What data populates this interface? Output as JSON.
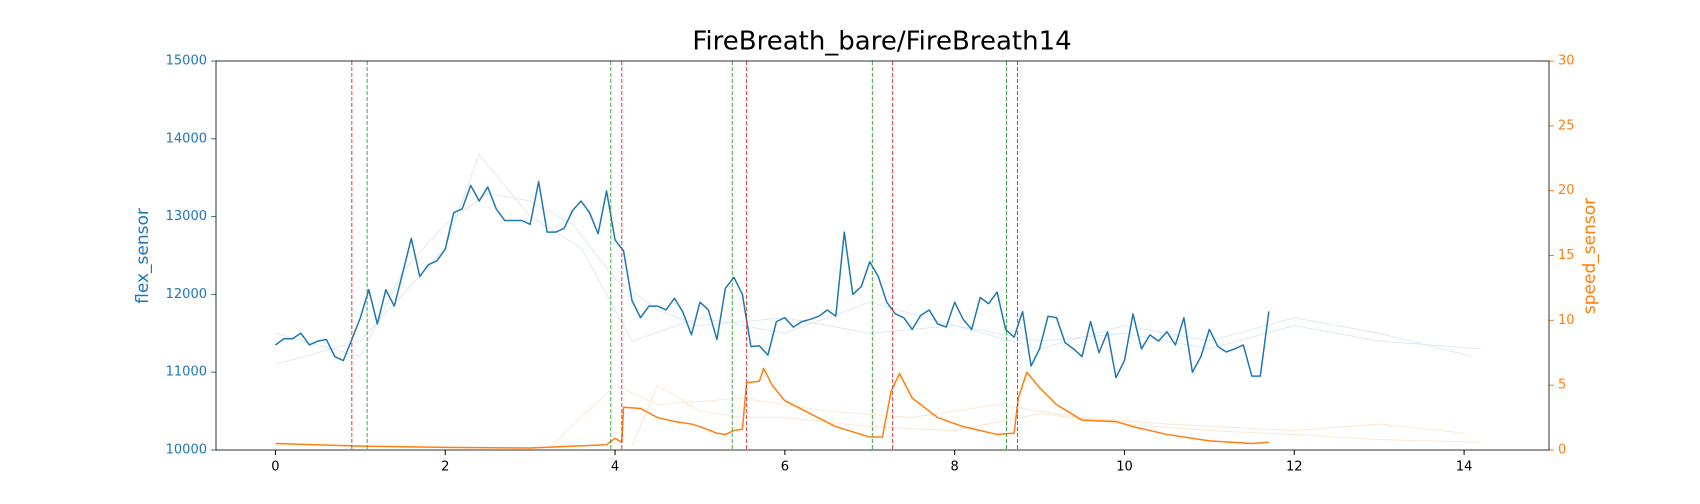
{
  "chart_data": {
    "type": "line",
    "title": "FireBreath_bare/FireBreath14",
    "ylabel": "flex_sensor",
    "y2label": "speed_sensor",
    "y_color": "#1f77b4",
    "y2_color": "#ff7f0e",
    "xlim": [
      -0.7,
      15.0
    ],
    "xticks": [
      0,
      2,
      4,
      6,
      8,
      10,
      12,
      14
    ],
    "ylim": [
      10000,
      15000
    ],
    "yticks": [
      10000,
      11000,
      12000,
      13000,
      14000,
      15000
    ],
    "y2lim": [
      0,
      30
    ],
    "y2ticks": [
      0,
      5,
      10,
      15,
      20,
      25,
      30
    ],
    "vlines": [
      {
        "x": 0.9,
        "color": "#d62728"
      },
      {
        "x": 1.08,
        "color": "#2ca02c"
      },
      {
        "x": 3.95,
        "color": "#2ca02c"
      },
      {
        "x": 4.08,
        "color": "#d62728"
      },
      {
        "x": 5.38,
        "color": "#2ca02c"
      },
      {
        "x": 5.55,
        "color": "#d62728"
      },
      {
        "x": 7.03,
        "color": "#2ca02c"
      },
      {
        "x": 7.27,
        "color": "#d62728"
      },
      {
        "x": 8.61,
        "color": "#2ca02c"
      },
      {
        "x": 8.74,
        "color": "#d62728"
      }
    ],
    "series": [
      {
        "color": "#d6e4f1",
        "width": 0.8,
        "x": [
          0,
          1,
          1.5,
          2,
          2.5,
          3,
          3.5,
          4,
          4.5,
          5,
          6,
          7,
          8,
          9,
          10,
          11,
          12,
          13,
          14.2
        ],
        "values": [
          11500,
          11200,
          12300,
          12900,
          13300,
          13200,
          12900,
          12200,
          11800,
          11600,
          11700,
          11500,
          11600,
          11400,
          11500,
          11300,
          11600,
          11400,
          11300
        ]
      },
      {
        "color": "#d6e4f1",
        "width": 0.8,
        "x": [
          0,
          1,
          2,
          2.4,
          3,
          3.6,
          4.2,
          5,
          6,
          7,
          8,
          9,
          10,
          11,
          12,
          13,
          14.1
        ],
        "values": [
          11100,
          11400,
          12600,
          13800,
          13000,
          12600,
          11400,
          11700,
          11500,
          11900,
          11600,
          11300,
          11600,
          11400,
          11700,
          11500,
          11200
        ]
      },
      {
        "color": "#fde2cb",
        "width": 0.8,
        "axis": "y2",
        "x": [
          4.2,
          4.5,
          5,
          5.5,
          6,
          7,
          8,
          9,
          10,
          11,
          12,
          13,
          14.2
        ],
        "values": [
          0.3,
          5,
          3,
          2.5,
          2.5,
          1.8,
          1.5,
          2.8,
          2,
          1.5,
          1.2,
          0.8,
          0.6
        ]
      },
      {
        "color": "#fde2cb",
        "width": 0.8,
        "axis": "y2",
        "x": [
          3.2,
          4,
          4.5,
          5.5,
          6.5,
          7.5,
          8.5,
          9.5,
          10.5,
          12,
          13,
          14
        ],
        "values": [
          0,
          5,
          3.5,
          4,
          3,
          2.5,
          3.5,
          2.5,
          2,
          1.5,
          2,
          1.3
        ]
      },
      {
        "color": "#1f77b4",
        "width": 1.5,
        "x": [
          0,
          0.1,
          0.2,
          0.3,
          0.4,
          0.5,
          0.6,
          0.7,
          0.8,
          0.9,
          1,
          1.1,
          1.2,
          1.3,
          1.4,
          1.5,
          1.6,
          1.7,
          1.8,
          1.9,
          2,
          2.1,
          2.2,
          2.3,
          2.4,
          2.5,
          2.6,
          2.7,
          2.8,
          2.9,
          3,
          3.1,
          3.2,
          3.3,
          3.4,
          3.5,
          3.6,
          3.7,
          3.8,
          3.9,
          4,
          4.1,
          4.2,
          4.3,
          4.4,
          4.5,
          4.6,
          4.7,
          4.8,
          4.9,
          5,
          5.1,
          5.2,
          5.3,
          5.4,
          5.5,
          5.6,
          5.7,
          5.8,
          5.9,
          6,
          6.1,
          6.2,
          6.3,
          6.4,
          6.5,
          6.6,
          6.7,
          6.8,
          6.9,
          7,
          7.1,
          7.2,
          7.3,
          7.4,
          7.5,
          7.6,
          7.7,
          7.8,
          7.9,
          8,
          8.1,
          8.2,
          8.3,
          8.4,
          8.5,
          8.6,
          8.7,
          8.8,
          8.9,
          9,
          9.1,
          9.2,
          9.3,
          9.4,
          9.5,
          9.6,
          9.7,
          9.8,
          9.9,
          10,
          10.1,
          10.2,
          10.3,
          10.4,
          10.5,
          10.6,
          10.7,
          10.8,
          10.9,
          11,
          11.1,
          11.2,
          11.3,
          11.4,
          11.5,
          11.6,
          11.7
        ],
        "values": [
          11350,
          11430,
          11430,
          11500,
          11350,
          11400,
          11420,
          11200,
          11150,
          11420,
          11700,
          12060,
          11620,
          12060,
          11850,
          12280,
          12720,
          12230,
          12380,
          12430,
          12580,
          13050,
          13100,
          13400,
          13200,
          13380,
          13100,
          12950,
          12950,
          12950,
          12900,
          13450,
          12800,
          12800,
          12850,
          13080,
          13200,
          13050,
          12780,
          13330,
          12700,
          12560,
          11920,
          11700,
          11850,
          11850,
          11800,
          11950,
          11770,
          11480,
          11900,
          11800,
          11420,
          12080,
          12220,
          12000,
          11330,
          11340,
          11220,
          11650,
          11700,
          11580,
          11650,
          11680,
          11720,
          11800,
          11720,
          12800,
          12000,
          12100,
          12420,
          12230,
          11900,
          11750,
          11700,
          11550,
          11730,
          11800,
          11620,
          11580,
          11900,
          11680,
          11550,
          11960,
          11880,
          12030,
          11550,
          11450,
          11780,
          11080,
          11300,
          11720,
          11700,
          11380,
          11300,
          11200,
          11650,
          11250,
          11520,
          10930,
          11150,
          11750,
          11300,
          11480,
          11400,
          11520,
          11350,
          11700,
          11000,
          11200,
          11550,
          11330,
          11260,
          11300,
          11350,
          10950,
          10950,
          11780
        ]
      },
      {
        "color": "#ff7f0e",
        "width": 1.5,
        "axis": "y2",
        "x": [
          0,
          1,
          2,
          3,
          3.9,
          4,
          4.08,
          4.1,
          4.3,
          4.5,
          4.7,
          4.9,
          5,
          5.2,
          5.3,
          5.4,
          5.5,
          5.55,
          5.7,
          5.75,
          5.85,
          6,
          6.3,
          6.6,
          7,
          7.15,
          7.25,
          7.35,
          7.5,
          7.8,
          8.1,
          8.5,
          8.7,
          8.75,
          8.85,
          9,
          9.2,
          9.5,
          9.9,
          10.1,
          10.5,
          11,
          11.5,
          11.7
        ],
        "values": [
          0.5,
          0.3,
          0.2,
          0.15,
          0.4,
          0.9,
          0.6,
          3.3,
          3.2,
          2.5,
          2.2,
          2,
          1.8,
          1.3,
          1.2,
          1.5,
          1.6,
          5.2,
          5.3,
          6.3,
          5,
          3.8,
          2.8,
          1.8,
          1,
          1,
          4.5,
          5.9,
          4,
          2.5,
          1.8,
          1.2,
          1.3,
          4,
          6,
          4.8,
          3.5,
          2.3,
          2.2,
          1.8,
          1.2,
          0.7,
          0.5,
          0.6
        ]
      }
    ]
  }
}
